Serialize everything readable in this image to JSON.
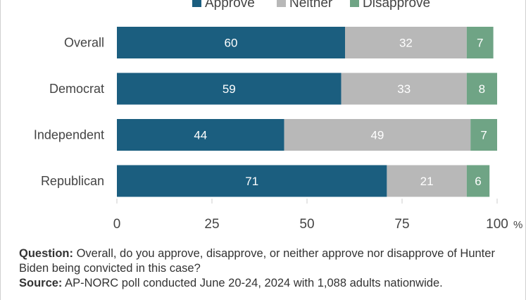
{
  "chart_data": {
    "type": "bar",
    "orientation": "horizontal",
    "stacked": true,
    "categories": [
      "Overall",
      "Democrat",
      "Independent",
      "Republican"
    ],
    "series": [
      {
        "name": "Approve",
        "values": [
          60,
          59,
          44,
          71
        ],
        "color": "#1b5e7f"
      },
      {
        "name": "Neither",
        "values": [
          32,
          33,
          49,
          21
        ],
        "color": "#b8b8b8"
      },
      {
        "name": "Disapprove",
        "values": [
          7,
          8,
          7,
          6
        ],
        "color": "#6fa485"
      }
    ],
    "xlim": [
      0,
      100
    ],
    "xticks": [
      "0",
      "25",
      "50",
      "75",
      "100"
    ],
    "x_unit": "%",
    "legend_position": "top",
    "grid": false
  },
  "notes": {
    "question_label": "Question:",
    "question_text": "Overall, do you approve, disapprove, or neither approve nor disapprove of Hunter Biden being convicted in this case?",
    "source_label": "Source:",
    "source_text": "AP-NORC poll conducted June 20-24, 2024 with 1,088 adults nationwide."
  }
}
